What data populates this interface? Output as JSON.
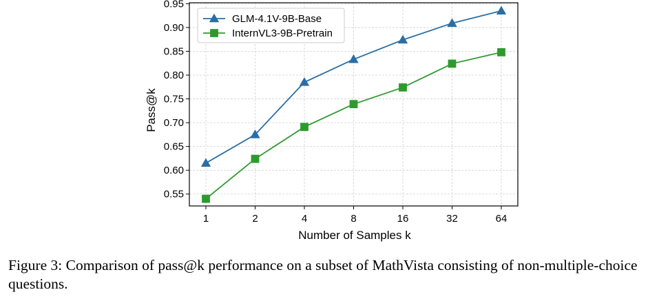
{
  "chart_data": {
    "type": "line",
    "title": "",
    "xlabel": "Number of Samples k",
    "ylabel": "Pass@k",
    "categories": [
      "1",
      "2",
      "4",
      "8",
      "16",
      "32",
      "64"
    ],
    "ylim": [
      0.525,
      0.952
    ],
    "yticks": [
      "0.55",
      "0.60",
      "0.65",
      "0.70",
      "0.75",
      "0.80",
      "0.85",
      "0.90",
      "0.95"
    ],
    "grid": true,
    "legend_position": "top-left",
    "series": [
      {
        "name": "GLM-4.1V-9B-Base",
        "color": "#2a6ea6",
        "marker": "triangle",
        "values": [
          0.615,
          0.675,
          0.785,
          0.833,
          0.874,
          0.909,
          0.935
        ]
      },
      {
        "name": "InternVL3-9B-Pretrain",
        "color": "#2e9a2e",
        "marker": "square",
        "values": [
          0.54,
          0.624,
          0.691,
          0.739,
          0.774,
          0.824,
          0.848
        ]
      }
    ]
  },
  "caption": "Figure 3: Comparison of pass@k performance on a subset of MathVista consisting of non-multiple-choice questions."
}
